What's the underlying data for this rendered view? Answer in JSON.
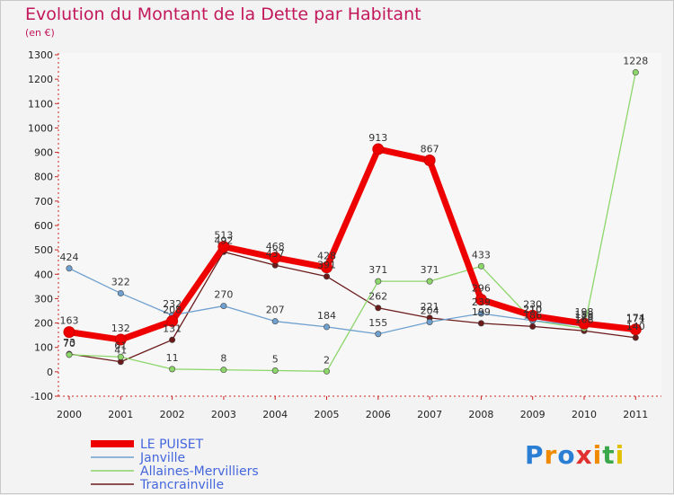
{
  "title": "Evolution du Montant de la Dette par Habitant",
  "subtitle": "(en €)",
  "logo": "Proxiti",
  "chart_data": {
    "type": "line",
    "x": [
      "2000",
      "2001",
      "2002",
      "2003",
      "2004",
      "2005",
      "2006",
      "2007",
      "2008",
      "2009",
      "2010",
      "2011"
    ],
    "ylim": [
      -100,
      1300
    ],
    "yticks": [
      -100,
      0,
      100,
      200,
      300,
      400,
      500,
      600,
      700,
      800,
      900,
      1000,
      1100,
      1200,
      1300
    ],
    "grid": false,
    "legend": "bottom-left",
    "series": [
      {
        "name": "LE PUISET",
        "color": "#ee0000",
        "values": [
          163,
          132,
          208,
          513,
          468,
          428,
          913,
          867,
          296,
          230,
          198,
          174
        ]
      },
      {
        "name": "Janville",
        "color": "#6fa0cf",
        "values": [
          424,
          322,
          232,
          270,
          207,
          184,
          155,
          204,
          239,
          210,
          188,
          171
        ]
      },
      {
        "name": "Allaines-Mervilliers",
        "color": "#8cd66a",
        "values": [
          70,
          61,
          11,
          8,
          5,
          2,
          371,
          371,
          433,
          210,
          178,
          1228
        ]
      },
      {
        "name": "Trancrainville",
        "color": "#6b1a1a",
        "values": [
          73,
          41,
          131,
          492,
          437,
          391,
          262,
          221,
          199,
          186,
          168,
          140
        ]
      }
    ]
  }
}
